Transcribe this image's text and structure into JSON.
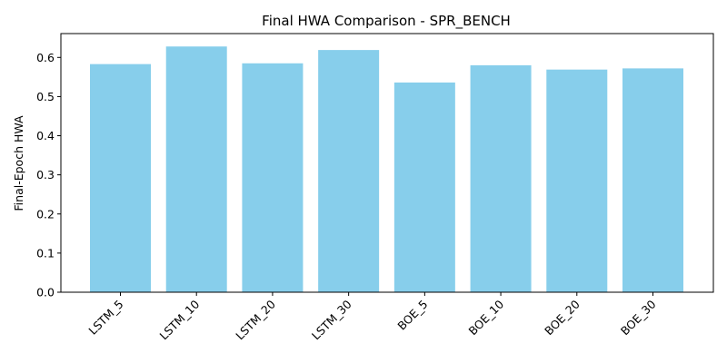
{
  "chart_data": {
    "type": "bar",
    "title": "Final HWA Comparison - SPR_BENCH",
    "xlabel": "",
    "ylabel": "Final-Epoch HWA",
    "categories": [
      "LSTM_5",
      "LSTM_10",
      "LSTM_20",
      "LSTM_30",
      "BOE_5",
      "BOE_10",
      "BOE_20",
      "BOE_30"
    ],
    "values": [
      0.583,
      0.628,
      0.585,
      0.619,
      0.536,
      0.58,
      0.569,
      0.572
    ],
    "ylim": [
      0,
      0.661
    ],
    "yticks": [
      0.0,
      0.1,
      0.2,
      0.3,
      0.4,
      0.5,
      0.6
    ],
    "ytick_labels": [
      "0.0",
      "0.1",
      "0.2",
      "0.3",
      "0.4",
      "0.5",
      "0.6"
    ],
    "bar_color": "#87ceeb",
    "grid": false,
    "legend": "none"
  }
}
